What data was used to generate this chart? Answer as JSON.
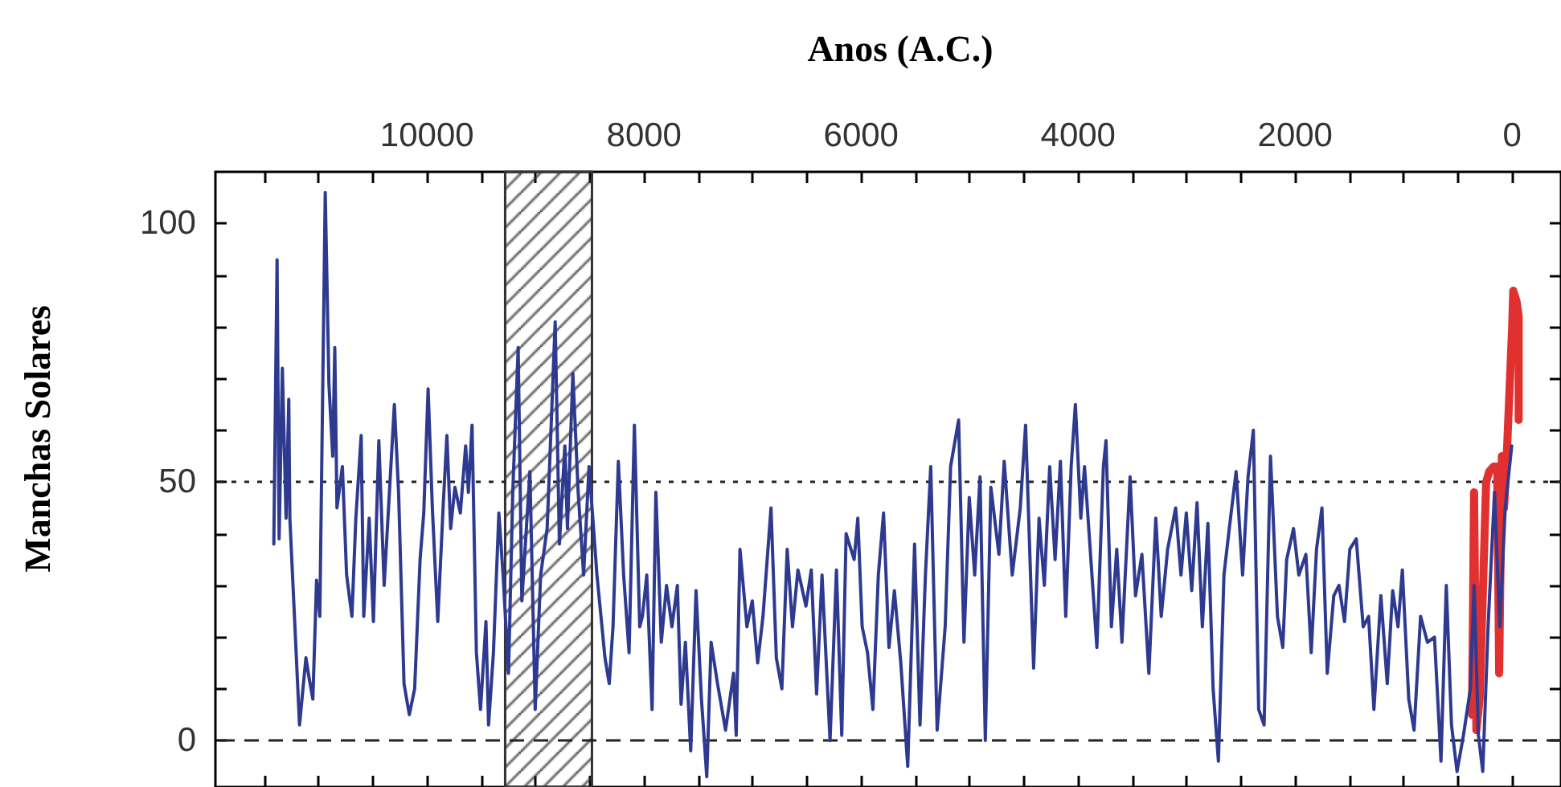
{
  "chart_data": {
    "type": "line",
    "xlabel": "Anos (A.C.)",
    "ylabel": "Manchas Solares",
    "xlim": [
      11950,
      -450
    ],
    "ylim": [
      -9,
      110
    ],
    "xticks": [
      {
        "value": 11500,
        "label": null
      },
      {
        "value": 11000,
        "label": null
      },
      {
        "value": 10500,
        "label": null
      },
      10000,
      {
        "value": 9500,
        "label": null
      },
      {
        "value": 9000,
        "label": null
      },
      {
        "value": 8500,
        "label": null
      },
      8000,
      {
        "value": 7500,
        "label": null
      },
      {
        "value": 7000,
        "label": null
      },
      {
        "value": 6500,
        "label": null
      },
      6000,
      {
        "value": 5500,
        "label": null
      },
      {
        "value": 5000,
        "label": null
      },
      {
        "value": 4500,
        "label": null
      },
      4000,
      {
        "value": 3500,
        "label": null
      },
      {
        "value": 3000,
        "label": null
      },
      {
        "value": 2500,
        "label": null
      },
      2000,
      {
        "value": 1500,
        "label": null
      },
      {
        "value": 1000,
        "label": null
      },
      {
        "value": 500,
        "label": null
      },
      0
    ],
    "yticks": [
      0,
      {
        "value": 10,
        "label": null
      },
      {
        "value": 20,
        "label": null
      },
      {
        "value": 30,
        "label": null
      },
      {
        "value": 40,
        "label": null
      },
      50,
      {
        "value": 60,
        "label": null
      },
      {
        "value": 70,
        "label": null
      },
      {
        "value": 80,
        "label": null
      },
      {
        "value": 90,
        "label": null
      },
      100
    ],
    "grid": false,
    "marker": "none",
    "line_style": "solid",
    "ref_lines": [
      {
        "axis": "y",
        "value": 50,
        "label": null,
        "color": "#222222",
        "line_style": "dotted"
      },
      {
        "axis": "y",
        "value": 0,
        "label": null,
        "color": "#222222",
        "line_style": "dashed"
      }
    ],
    "bands": [
      {
        "axis": "x",
        "from": 9280,
        "to": 8480,
        "label": null,
        "color": "#333333"
      }
    ],
    "series": [
      {
        "color": "#2e3a8f",
        "x": [
          11412,
          11382,
          11363,
          11333,
          11299,
          11274,
          11264,
          11175,
          11116,
          11086,
          11052,
          11018,
          10988,
          10938,
          10904,
          10869,
          10850,
          10830,
          10780,
          10741,
          10692,
          10656,
          10607,
          10583,
          10533,
          10494,
          10444,
          10395,
          10360,
          10301,
          10262,
          10212,
          10163,
          10114,
          10064,
          10030,
          9990,
          9951,
          9901,
          9852,
          9817,
          9782,
          9743,
          9693,
          9644,
          9619,
          9585,
          9545,
          9507,
          9457,
          9433,
          9388,
          9338,
          9299,
          9249,
          9210,
          9160,
          9126,
          9052,
          9003,
          8953,
          8893,
          8819,
          8780,
          8730,
          8706,
          8656,
          8607,
          8557,
          8507,
          8434,
          8360,
          8321,
          8286,
          8237,
          8188,
          8138,
          8089,
          8040,
          8015,
          7975,
          7926,
          7891,
          7841,
          7793,
          7743,
          7693,
          7659,
          7619,
          7570,
          7521,
          7471,
          7422,
          7382,
          7323,
          7249,
          7175,
          7151,
          7116,
          7052,
          7003,
          6953,
          6904,
          6830,
          6781,
          6730,
          6681,
          6632,
          6582,
          6508,
          6459,
          6410,
          6360,
          6286,
          6227,
          6178,
          6138,
          6064,
          6030,
          5990,
          5941,
          5891,
          5841,
          5793,
          5743,
          5693,
          5634,
          5570,
          5507,
          5457,
          5407,
          5358,
          5299,
          5225,
          5175,
          5101,
          5052,
          5003,
          4953,
          4904,
          4855,
          4804,
          4730,
          4681,
          4607,
          4533,
          4484,
          4410,
          4360,
          4311,
          4262,
          4212,
          4163,
          4114,
          4064,
          4025,
          3975,
          3941,
          3892,
          3827,
          3767,
          3743,
          3693,
          3644,
          3596,
          3521,
          3471,
          3412,
          3348,
          3284,
          3234,
          3175,
          3101,
          3052,
          3003,
          2953,
          2904,
          2855,
          2804,
          2756,
          2707,
          2656,
          2607,
          2544,
          2484,
          2434,
          2385,
          2336,
          2286,
          2227,
          2163,
          2114,
          2078,
          2015,
          1966,
          1901,
          1852,
          1803,
          1753,
          1704,
          1644,
          1596,
          1545,
          1496,
          1437,
          1373,
          1323,
          1274,
          1210,
          1151,
          1101,
          1052,
          1012,
          953,
          904,
          844,
          781,
          716,
          656,
          607,
          559,
          508,
          449,
          385,
          351,
          311,
          271,
          222,
          163,
          114,
          64,
          4
        ],
        "values": [
          38,
          93,
          39,
          72,
          43,
          66,
          43,
          3,
          16,
          12,
          8,
          31,
          24,
          106,
          69,
          55,
          76,
          45,
          53,
          32,
          24,
          43,
          59,
          24,
          43,
          23,
          58,
          30,
          43,
          65,
          48,
          11,
          5,
          10,
          35,
          44,
          68,
          45,
          23,
          45,
          59,
          41,
          49,
          44,
          57,
          48,
          61,
          17,
          6,
          23,
          3,
          17,
          44,
          32,
          13,
          48,
          76,
          27,
          52,
          6,
          32,
          41,
          81,
          38,
          57,
          41,
          71,
          48,
          32,
          53,
          32,
          16,
          11,
          22,
          54,
          32,
          17,
          61,
          22,
          24,
          32,
          6,
          48,
          19,
          30,
          22,
          30,
          7,
          19,
          -2,
          29,
          8,
          -7,
          19,
          11,
          2,
          13,
          1,
          37,
          22,
          27,
          15,
          24,
          45,
          16,
          10,
          37,
          22,
          33,
          26,
          33,
          9,
          32,
          0,
          33,
          1,
          40,
          35,
          43,
          22,
          17,
          6,
          32,
          44,
          18,
          29,
          15,
          -5,
          38,
          3,
          32,
          53,
          2,
          22,
          53,
          62,
          19,
          47,
          32,
          51,
          0,
          49,
          36,
          54,
          32,
          45,
          61,
          14,
          43,
          30,
          53,
          35,
          54,
          24,
          53,
          65,
          43,
          53,
          38,
          18,
          53,
          58,
          22,
          37,
          19,
          51,
          28,
          36,
          13,
          43,
          24,
          37,
          45,
          32,
          44,
          29,
          46,
          22,
          42,
          10,
          -4,
          32,
          41,
          52,
          32,
          51,
          60,
          6,
          3,
          55,
          24,
          18,
          35,
          41,
          32,
          36,
          17,
          37,
          45,
          13,
          28,
          30,
          23,
          37,
          39,
          22,
          24,
          6,
          28,
          11,
          29,
          22,
          33,
          8,
          2,
          24,
          19,
          20,
          -4,
          30,
          3,
          -6,
          1,
          10,
          30,
          1,
          -6,
          22,
          48,
          22,
          45,
          57
        ]
      },
      {
        "color": "#e0302f",
        "x": [
          370,
          351,
          330,
          300,
          271,
          240,
          212,
          170,
          138,
          120,
          95,
          75,
          50,
          20,
          0,
          -10,
          -40,
          -60,
          -60
        ],
        "values": [
          5,
          48,
          2,
          8,
          28,
          50,
          52,
          53,
          53,
          13,
          55,
          45,
          55,
          70,
          80,
          87,
          85,
          82,
          62
        ]
      }
    ]
  }
}
